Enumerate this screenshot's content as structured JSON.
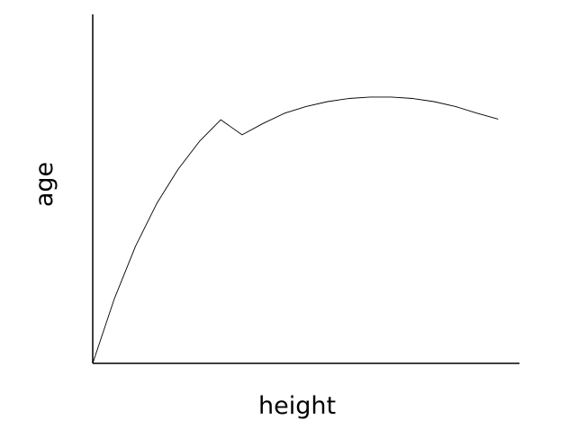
{
  "chart_data": {
    "type": "line",
    "title": "",
    "xlabel": "height",
    "ylabel": "age",
    "xlim": [
      0,
      100
    ],
    "ylim": [
      0,
      100
    ],
    "grid": false,
    "ticks_visible": false,
    "series": [
      {
        "line_color": "#000000",
        "x": [
          0,
          5,
          10,
          15,
          20,
          25,
          30,
          35,
          40,
          45,
          50,
          55,
          60,
          65,
          70,
          75,
          80,
          85,
          90,
          95
        ],
        "y": [
          0,
          18.3,
          33.5,
          45.8,
          55.6,
          63.6,
          69.8,
          65.5,
          68.8,
          71.7,
          73.6,
          75.0,
          75.9,
          76.3,
          76.3,
          75.9,
          75.0,
          73.6,
          71.7,
          70.0
        ]
      }
    ]
  }
}
